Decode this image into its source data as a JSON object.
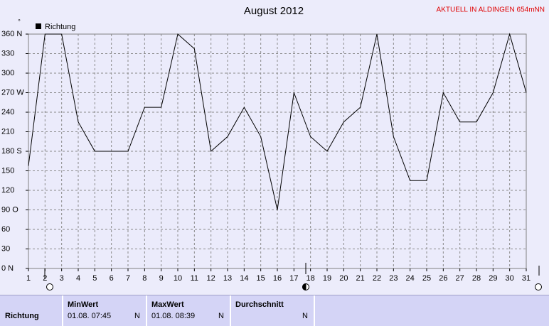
{
  "chart_data": {
    "type": "line",
    "title": "August 2012",
    "annotation": "AKTUELL IN ALDINGEN 654mNN",
    "y_unit": "°",
    "categories": [
      "1",
      "2",
      "3",
      "4",
      "5",
      "6",
      "7",
      "8",
      "9",
      "10",
      "11",
      "12",
      "13",
      "14",
      "15",
      "16",
      "17",
      "18",
      "19",
      "20",
      "21",
      "22",
      "23",
      "24",
      "25",
      "26",
      "27",
      "28",
      "29",
      "30",
      "31"
    ],
    "series": [
      {
        "name": "Richtung",
        "color": "#000000",
        "values": [
          157.5,
          360,
          360,
          225,
          180,
          180,
          180,
          247.5,
          247.5,
          360,
          337.5,
          180,
          202.5,
          247.5,
          202.5,
          90,
          270,
          202.5,
          180,
          225,
          247.5,
          360,
          202.5,
          135,
          135,
          270,
          225,
          225,
          270,
          360,
          270
        ]
      }
    ],
    "ylim": [
      0,
      360
    ],
    "yticks": [
      {
        "value": 0,
        "label": "0  N"
      },
      30,
      60,
      {
        "value": 90,
        "label": "90  O"
      },
      120,
      150,
      {
        "value": 180,
        "label": "180 S"
      },
      210,
      240,
      {
        "value": 270,
        "label": "270 W"
      },
      300,
      330,
      {
        "value": 360,
        "label": "360 N"
      }
    ],
    "grid": true,
    "legend": "top-left"
  },
  "table": {
    "headers": [
      "MinWert",
      "MaxWert",
      "Durchschnitt"
    ],
    "row": {
      "label": "Richtung",
      "min_time": "01.08.  07:45",
      "min_dir": "N",
      "max_time": "01.08.  08:39",
      "max_dir": "N",
      "avg_dir": "N"
    }
  }
}
